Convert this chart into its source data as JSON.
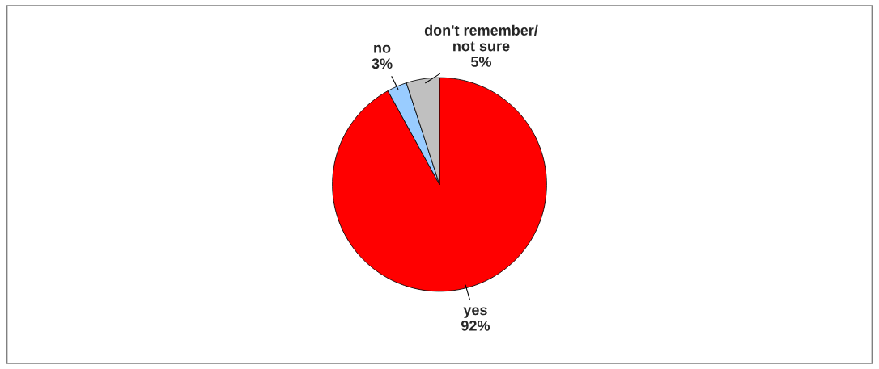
{
  "chart_data": {
    "type": "pie",
    "categories": [
      "yes",
      "no",
      "don't remember/\nnot sure"
    ],
    "values": [
      92,
      3,
      5
    ],
    "value_labels": [
      "92%",
      "3%",
      "5%"
    ],
    "colors": [
      "#ff0000",
      "#99ccff",
      "#c0c0c0"
    ]
  }
}
